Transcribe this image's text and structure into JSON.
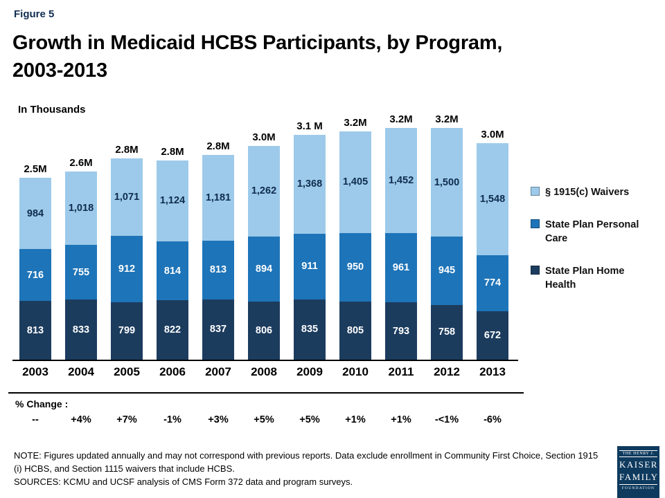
{
  "figure_label": "Figure 5",
  "title_line1": "Growth in Medicaid HCBS Participants, by Program,",
  "title_line2": "2003-2013",
  "units_label": "In Thousands",
  "pct_change_label": "% Change :",
  "notes": {
    "note": "NOTE: Figures updated annually and may not correspond with previous reports. Data exclude enrollment in Community First Choice, Section 1915 (i) HCBS, and Section 1115 waivers that include HCBS.",
    "sources": "SOURCES: KCMU and UCSF analysis of CMS Form 372 data and program surveys."
  },
  "logo": {
    "line1": "THE HENRY J.",
    "line2": "KAISER",
    "line3": "FAMILY",
    "line4": "FOUNDATION"
  },
  "chart_data": {
    "type": "bar",
    "stacked": true,
    "title": "Growth in Medicaid HCBS Participants, by Program, 2003-2013",
    "units": "thousands",
    "categories": [
      "2003",
      "2004",
      "2005",
      "2006",
      "2007",
      "2008",
      "2009",
      "2010",
      "2011",
      "2012",
      "2013"
    ],
    "series": [
      {
        "name": "State Plan Home Health",
        "color": "#1C3C5E",
        "label_color": "#ffffff",
        "values": [
          813,
          833,
          799,
          822,
          837,
          806,
          835,
          805,
          793,
          758,
          672
        ]
      },
      {
        "name": "State Plan Personal Care",
        "color": "#1E74B8",
        "label_color": "#ffffff",
        "values": [
          716,
          755,
          912,
          814,
          813,
          894,
          911,
          950,
          961,
          945,
          774
        ]
      },
      {
        "name": "§ 1915(c) Waivers",
        "color": "#9DCAEA",
        "label_color": "#0E2C4E",
        "values": [
          984,
          1018,
          1071,
          1124,
          1181,
          1262,
          1368,
          1405,
          1452,
          1500,
          1548
        ]
      }
    ],
    "totals": [
      "2.5M",
      "2.6M",
      "2.8M",
      "2.8M",
      "2.8M",
      "3.0M",
      "3.1 M",
      "3.2M",
      "3.2M",
      "3.2M",
      "3.0M"
    ],
    "pct_change": [
      "--",
      "+4%",
      "+7%",
      "-1%",
      "+3%",
      "+5%",
      "+5%",
      "+1%",
      "+1%",
      "-<1%",
      "-6%"
    ],
    "legend": [
      {
        "label": "§ 1915(c) Waivers",
        "color": "#9DCAEA"
      },
      {
        "label": "State Plan Personal Care",
        "color": "#1E74B8"
      },
      {
        "label": "State Plan Home Health",
        "color": "#1C3C5E"
      }
    ],
    "legend_position": "right",
    "grid": false
  }
}
